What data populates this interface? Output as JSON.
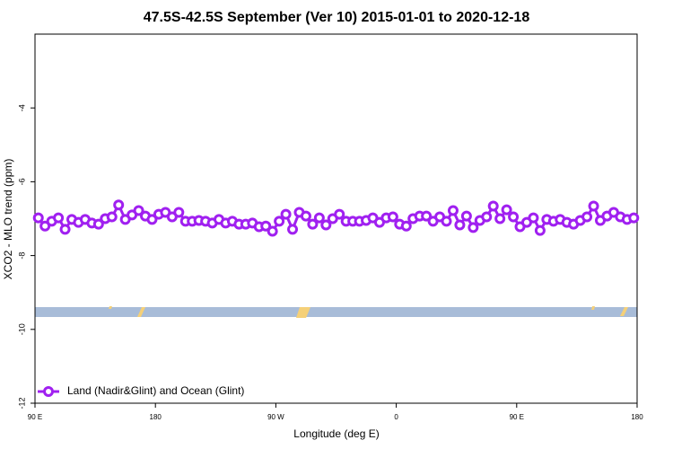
{
  "chart_data": {
    "type": "line",
    "title": "47.5S-42.5S September (Ver 10)   2015-01-01 to 2020-12-18",
    "x_label": "Longitude (deg E)",
    "y_label": "XCO2 - MLO trend (ppm)",
    "x": [
      92.5,
      97.5,
      102.5,
      107.5,
      112.5,
      117.5,
      122.5,
      127.5,
      132.5,
      137.5,
      142.5,
      147.5,
      152.5,
      157.5,
      162.5,
      167.5,
      172.5,
      177.5,
      182.5,
      187.5,
      192.5,
      197.5,
      202.5,
      207.5,
      212.5,
      217.5,
      222.5,
      227.5,
      232.5,
      237.5,
      242.5,
      247.5,
      252.5,
      257.5,
      262.5,
      267.5,
      272.5,
      277.5,
      282.5,
      287.5,
      292.5,
      297.5,
      302.5,
      307.5,
      312.5,
      317.5,
      322.5,
      327.5,
      332.5,
      337.5,
      342.5,
      347.5,
      352.5,
      357.5,
      362.5,
      367.5,
      372.5,
      377.5,
      382.5,
      387.5,
      392.5,
      397.5,
      402.5,
      407.5,
      412.5,
      417.5,
      422.5,
      427.5,
      432.5,
      437.5,
      442.5,
      447.5,
      452.5,
      457.5,
      462.5,
      467.5,
      472.5,
      477.5,
      482.5,
      487.5,
      492.5,
      497.5,
      502.5,
      507.5,
      512.5,
      517.5,
      522.5,
      527.5,
      532.5,
      537.5
    ],
    "series": [
      {
        "name": "Land (Nadir&Glint) and Ocean (Glint)",
        "color": "#a020f0",
        "values": [
          -6.98,
          -7.2,
          -7.07,
          -6.98,
          -7.29,
          -7.02,
          -7.1,
          -7.02,
          -7.12,
          -7.15,
          -7.0,
          -6.95,
          -6.63,
          -7.02,
          -6.9,
          -6.78,
          -6.93,
          -7.02,
          -6.88,
          -6.83,
          -6.95,
          -6.83,
          -7.07,
          -7.07,
          -7.05,
          -7.07,
          -7.12,
          -7.02,
          -7.12,
          -7.07,
          -7.15,
          -7.15,
          -7.12,
          -7.22,
          -7.2,
          -7.34,
          -7.07,
          -6.88,
          -7.29,
          -6.83,
          -6.93,
          -7.15,
          -6.98,
          -7.17,
          -7.0,
          -6.88,
          -7.07,
          -7.07,
          -7.07,
          -7.05,
          -6.98,
          -7.1,
          -6.98,
          -6.95,
          -7.15,
          -7.2,
          -7.0,
          -6.93,
          -6.93,
          -7.07,
          -6.95,
          -7.07,
          -6.78,
          -7.17,
          -6.93,
          -7.24,
          -7.05,
          -6.95,
          -6.66,
          -7.0,
          -6.76,
          -6.95,
          -7.22,
          -7.1,
          -6.98,
          -7.32,
          -7.02,
          -7.07,
          -7.02,
          -7.1,
          -7.15,
          -7.05,
          -6.95,
          -6.66,
          -7.05,
          -6.93,
          -6.83,
          -6.95,
          -7.02,
          -6.98
        ]
      }
    ],
    "xlim": [
      90,
      540
    ],
    "xticks": [
      {
        "value": 90,
        "label": "90 E"
      },
      180,
      {
        "value": 270,
        "label": "90 W"
      },
      {
        "value": 360,
        "label": "0"
      },
      {
        "value": 450,
        "label": "90 E"
      },
      {
        "value": 540,
        "label": "180"
      }
    ],
    "ylim": [
      -12,
      -2
    ],
    "yticks": [
      -12,
      -10,
      -8,
      -6,
      -4
    ],
    "legend": "bottom-left"
  }
}
